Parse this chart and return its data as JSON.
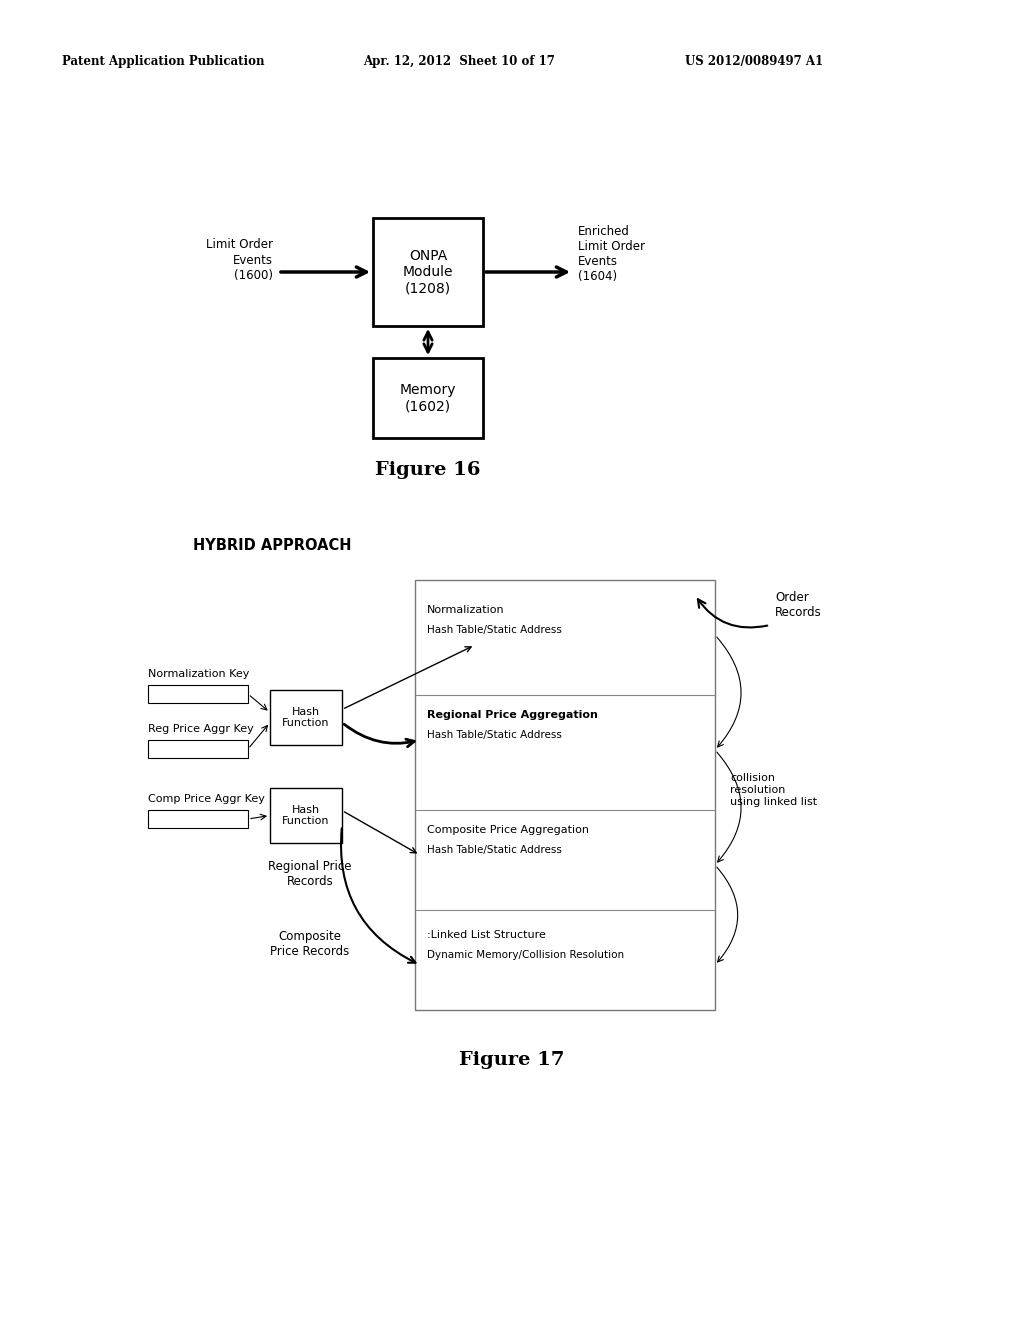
{
  "bg_color": "#ffffff",
  "header_left": "Patent Application Publication",
  "header_mid": "Apr. 12, 2012  Sheet 10 of 17",
  "header_right": "US 2012/0089497 A1",
  "fig16_caption": "Figure 16",
  "fig17_caption": "Figure 17",
  "hybrid_title": "HYBRID APPROACH",
  "onpa_box_text": "ONPA\nModule\n(1208)",
  "memory_box_text": "Memory\n(1602)",
  "limit_order_label": "Limit Order\nEvents\n(1600)",
  "enriched_label": "Enriched\nLimit Order\nEvents\n(1604)",
  "norm_key_label": "Normalization Key",
  "reg_key_label": "Reg Price Aggr Key",
  "comp_key_label": "Comp Price Aggr Key",
  "hash1_text": "Hash\nFunction",
  "hash2_text": "Hash\nFunction",
  "order_records_label": "Order\nRecords",
  "collision_label": "collision\nresolution\nusing linked list",
  "regional_price_label": "Regional Price\nRecords",
  "composite_price_label": "Composite\nPrice Records",
  "norm_text1": "Normalization",
  "norm_text2": "Hash Table/Static Address",
  "reg_text1": "Regional Price Aggregation",
  "reg_text2": "Hash Table/Static Address",
  "comp_text1": "Composite Price Aggregation",
  "comp_text2": "Hash Table/Static Address",
  "linked_text1": ":Linked List Structure",
  "linked_text2": "Dynamic Memory/Collision Resolution"
}
